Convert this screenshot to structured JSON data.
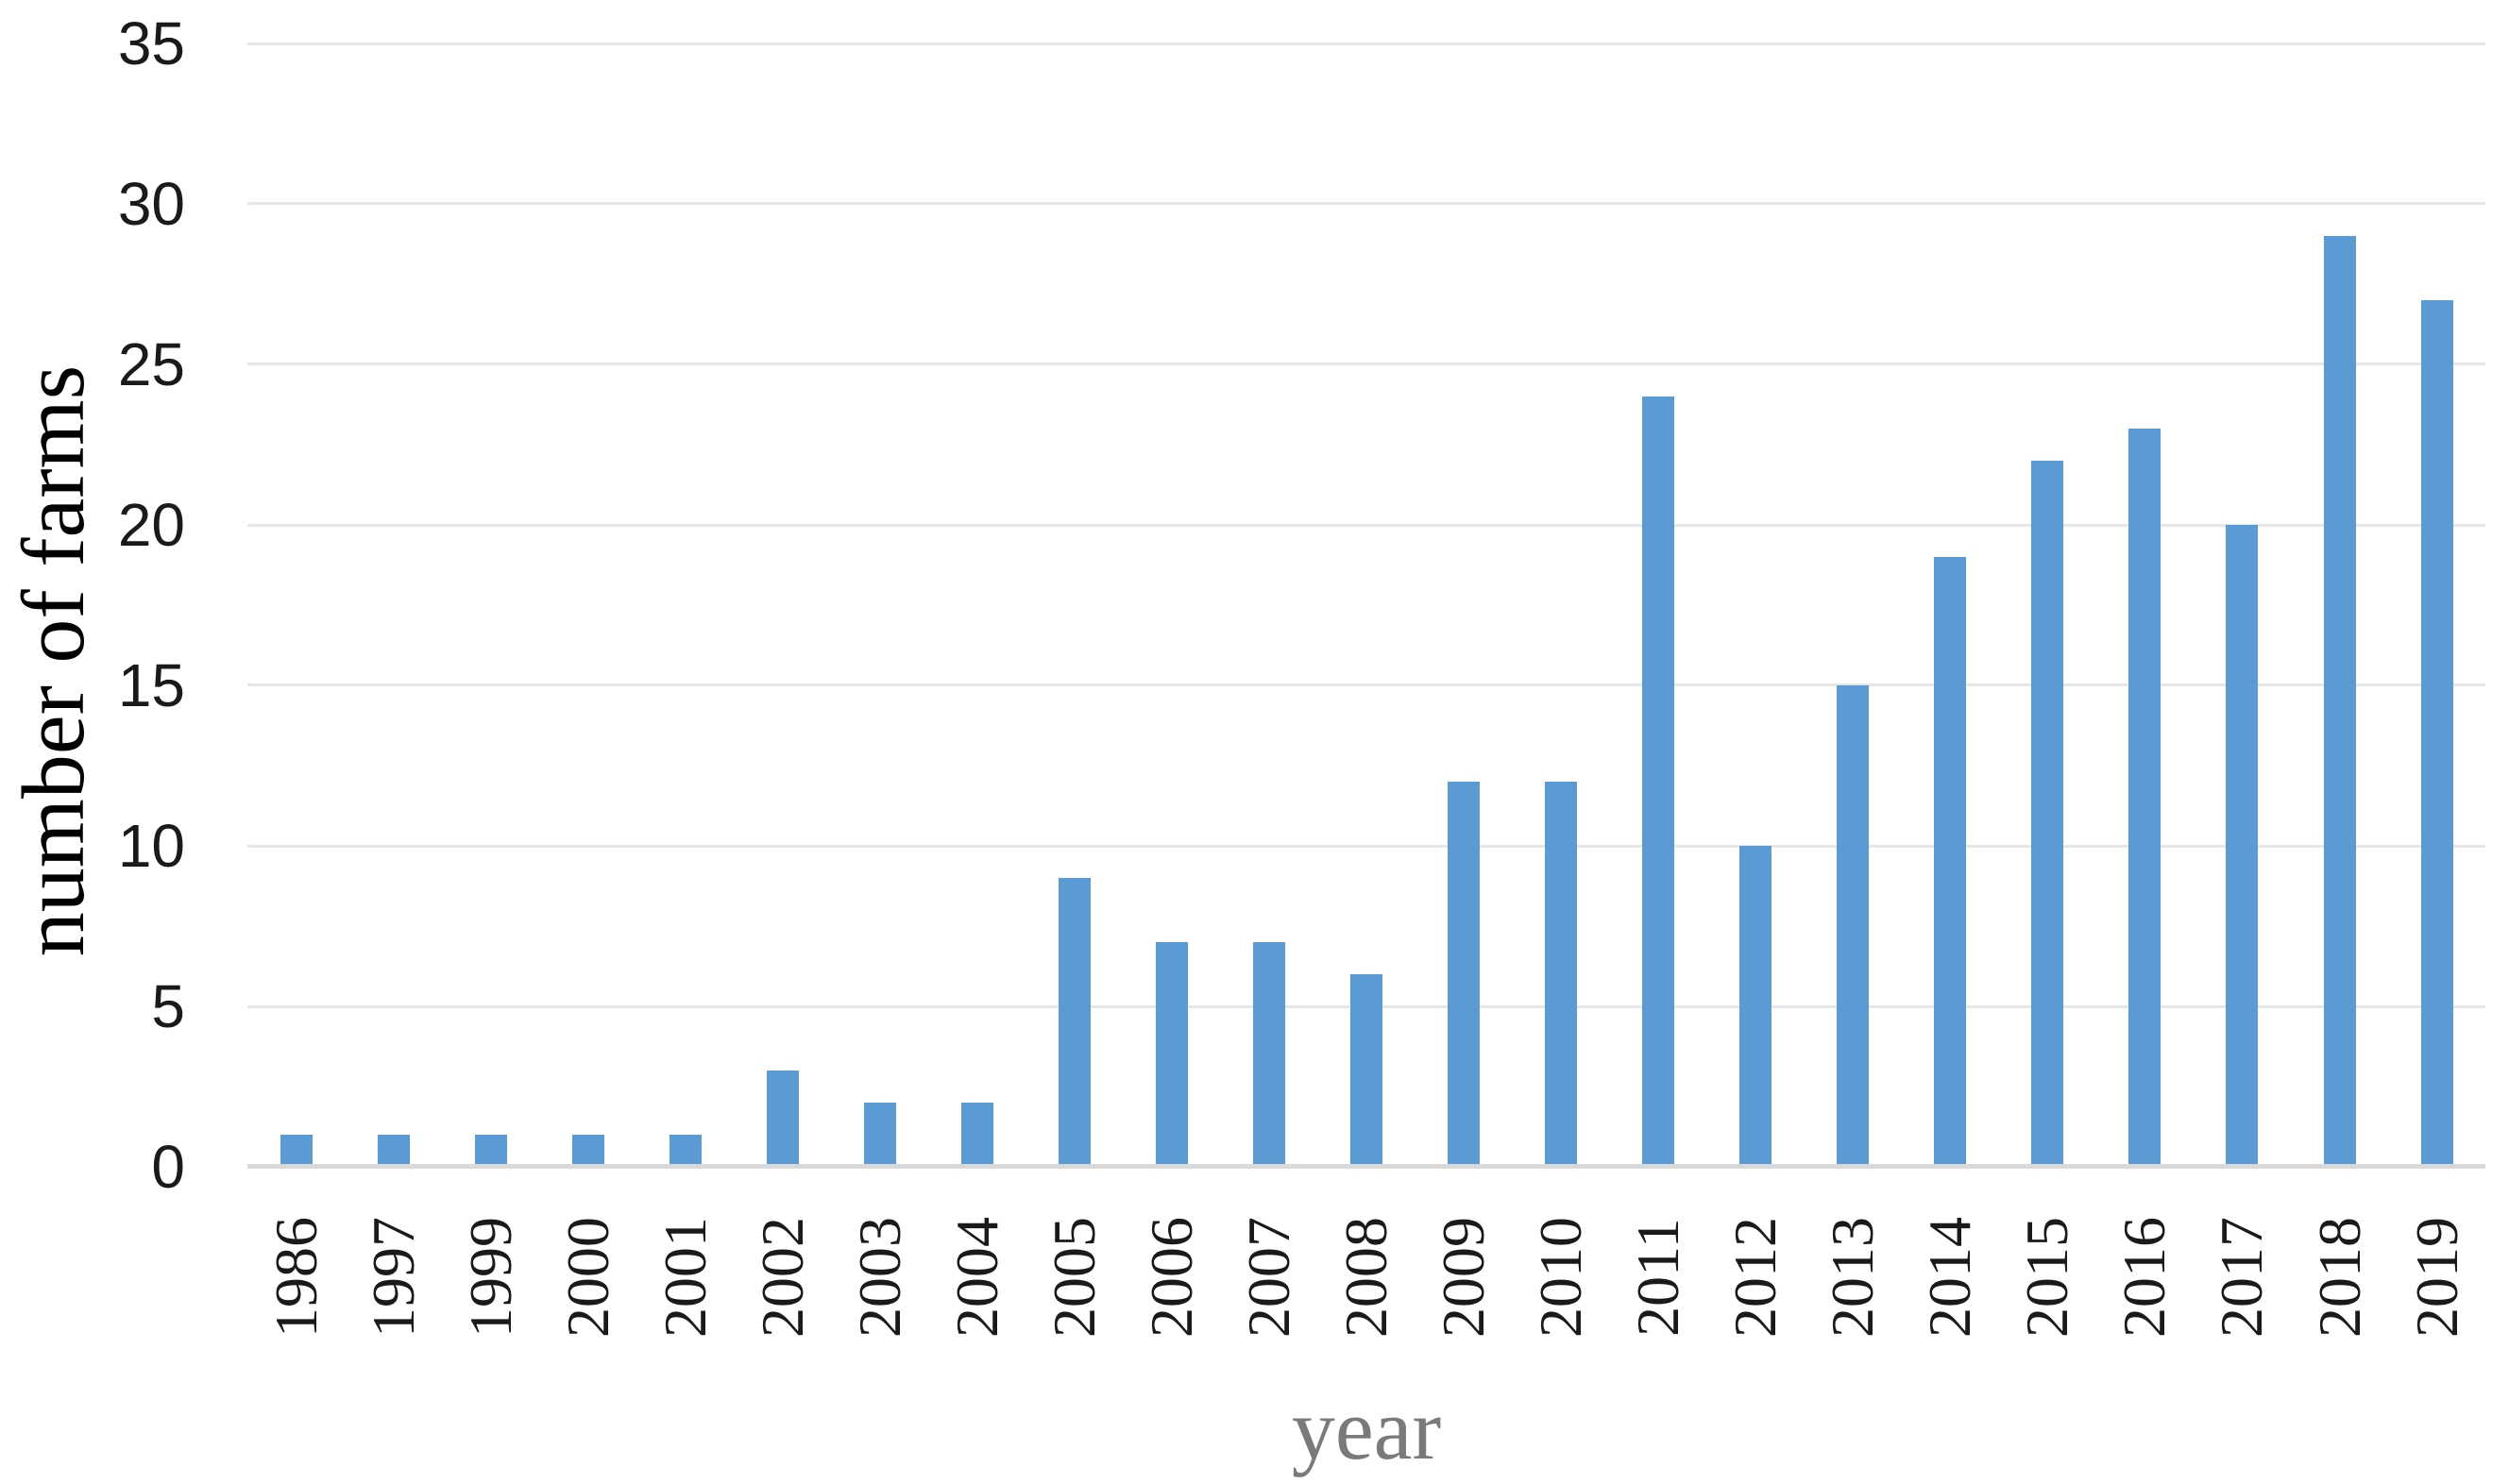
{
  "figure": {
    "background_color": "#ffffff"
  },
  "chart_data": {
    "type": "bar",
    "categories": [
      "1986",
      "1997",
      "1999",
      "2000",
      "2001",
      "2002",
      "2003",
      "2004",
      "2005",
      "2006",
      "2007",
      "2008",
      "2009",
      "2010",
      "2011",
      "2012",
      "2013",
      "2014",
      "2015",
      "2016",
      "2017",
      "2018",
      "2019"
    ],
    "values": [
      1,
      1,
      1,
      1,
      1,
      3,
      2,
      2,
      9,
      7,
      7,
      6,
      12,
      12,
      24,
      10,
      15,
      19,
      22,
      23,
      20,
      29,
      27
    ],
    "title": "",
    "xlabel": "year",
    "ylabel": "number of farms",
    "ylim": [
      0,
      35
    ],
    "yticks": [
      0,
      5,
      10,
      15,
      20,
      25,
      30,
      35
    ],
    "grid": "horizontal",
    "legend": "none",
    "bar_color": "#5B9BD5",
    "gridline_color": "#E6E6E6",
    "axis_line_color": "#D9D9D9",
    "tick_label_color": "#1a1a1a",
    "xlabel_color": "#7a7a7a"
  }
}
